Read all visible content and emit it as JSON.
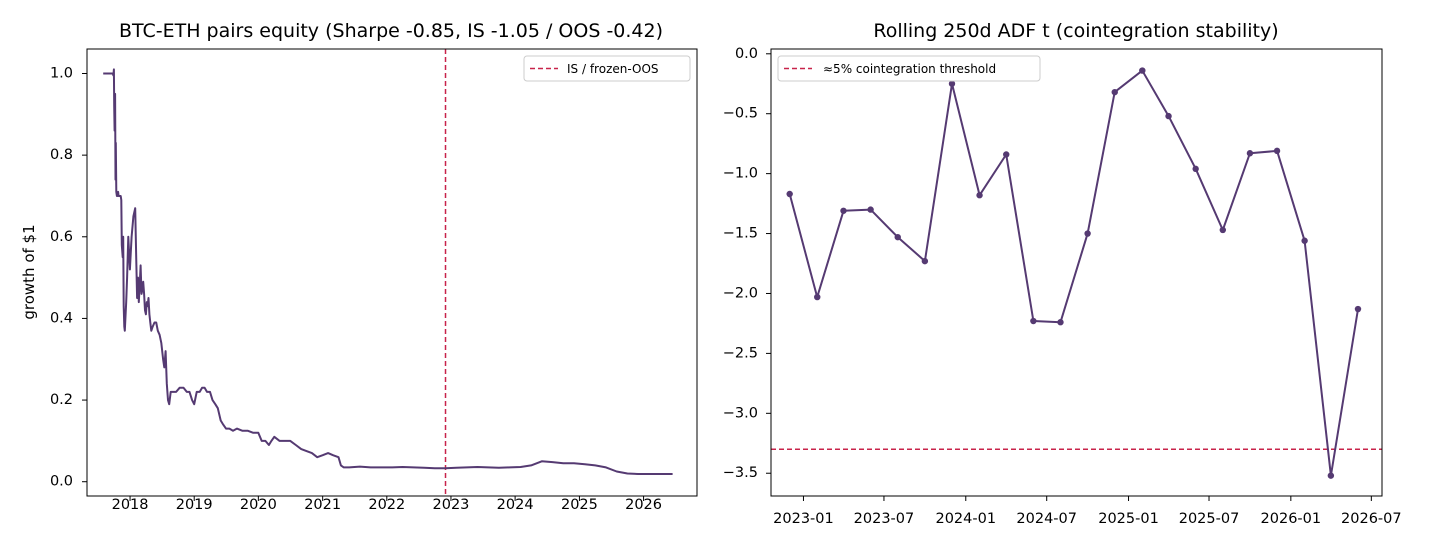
{
  "chart_data": [
    {
      "type": "line",
      "title": "BTC-ETH pairs equity (Sharpe -0.85, IS -1.05 / OOS -0.42)",
      "xlabel": "",
      "ylabel": "growth of $1",
      "xlim": [
        "2017-05-01",
        "2026-11-01"
      ],
      "ylim": [
        -0.035,
        1.06
      ],
      "xticks": [
        "2018",
        "2019",
        "2020",
        "2021",
        "2022",
        "2023",
        "2024",
        "2025",
        "2026"
      ],
      "yticks": [
        "0.0",
        "0.2",
        "0.4",
        "0.6",
        "0.8",
        "1.0"
      ],
      "grid": false,
      "legend": {
        "position": "upper right",
        "entries": [
          "IS / frozen-OOS"
        ]
      },
      "colors": {
        "series": "#553a72",
        "split": "#c8234a"
      },
      "split_date": "2022-12-01",
      "series": [
        {
          "x": [
            "2017-08-01",
            "2017-09-25",
            "2017-09-28",
            "2017-10-01",
            "2017-10-03",
            "2017-10-05",
            "2017-10-08",
            "2017-10-10",
            "2017-10-12",
            "2017-10-15",
            "2017-10-18",
            "2017-10-20",
            "2017-10-25",
            "2017-10-28",
            "2017-10-31",
            "2017-11-03",
            "2017-11-06",
            "2017-11-09",
            "2017-11-12",
            "2017-11-15",
            "2017-11-20",
            "2017-11-23",
            "2017-11-26",
            "2017-11-29",
            "2017-12-02",
            "2017-12-10",
            "2017-12-15",
            "2017-12-22",
            "2017-12-31",
            "2018-01-10",
            "2018-01-20",
            "2018-01-30",
            "2018-02-05",
            "2018-02-10",
            "2018-02-15",
            "2018-02-20",
            "2018-02-25",
            "2018-03-02",
            "2018-03-07",
            "2018-03-12",
            "2018-03-17",
            "2018-03-22",
            "2018-03-27",
            "2018-04-01",
            "2018-04-06",
            "2018-04-11",
            "2018-04-16",
            "2018-04-21",
            "2018-04-26",
            "2018-05-02",
            "2018-05-10",
            "2018-05-20",
            "2018-05-30",
            "2018-06-08",
            "2018-06-18",
            "2018-06-28",
            "2018-07-08",
            "2018-07-15",
            "2018-07-22",
            "2018-07-29",
            "2018-08-05",
            "2018-08-12",
            "2018-08-20",
            "2018-09-01",
            "2018-09-20",
            "2018-10-10",
            "2018-11-01",
            "2018-11-20",
            "2018-12-05",
            "2018-12-20",
            "2019-01-01",
            "2019-01-15",
            "2019-02-01",
            "2019-02-15",
            "2019-03-01",
            "2019-03-15",
            "2019-04-01",
            "2019-04-15",
            "2019-05-01",
            "2019-05-15",
            "2019-06-01",
            "2019-06-15",
            "2019-07-01",
            "2019-07-20",
            "2019-08-10",
            "2019-09-01",
            "2019-10-01",
            "2019-11-01",
            "2019-12-01",
            "2020-01-01",
            "2020-01-20",
            "2020-02-10",
            "2020-03-01",
            "2020-03-15",
            "2020-04-01",
            "2020-05-01",
            "2020-06-01",
            "2020-07-01",
            "2020-08-01",
            "2020-09-01",
            "2020-10-01",
            "2020-11-01",
            "2020-12-01",
            "2021-01-01",
            "2021-02-01",
            "2021-03-01",
            "2021-04-01",
            "2021-04-15",
            "2021-05-01",
            "2021-06-01",
            "2021-08-01",
            "2021-10-01",
            "2021-12-01",
            "2022-02-01",
            "2022-04-01",
            "2022-06-01",
            "2022-08-01",
            "2022-10-01",
            "2022-12-01",
            "2023-02-01",
            "2023-04-01",
            "2023-06-01",
            "2023-08-01",
            "2023-10-01",
            "2023-12-01",
            "2024-02-01",
            "2024-04-01",
            "2024-06-01",
            "2024-08-01",
            "2024-10-01",
            "2024-12-01",
            "2025-02-01",
            "2025-04-01",
            "2025-06-01",
            "2025-08-01",
            "2025-10-01",
            "2025-12-01",
            "2026-02-01",
            "2026-04-01",
            "2026-06-15"
          ],
          "y": [
            1.0,
            1.0,
            0.995,
            1.01,
            0.92,
            0.86,
            0.95,
            0.74,
            0.83,
            0.71,
            0.7,
            0.7,
            0.71,
            0.7,
            0.7,
            0.7,
            0.7,
            0.7,
            0.69,
            0.58,
            0.55,
            0.6,
            0.43,
            0.38,
            0.37,
            0.44,
            0.5,
            0.6,
            0.52,
            0.6,
            0.65,
            0.67,
            0.55,
            0.45,
            0.5,
            0.44,
            0.48,
            0.53,
            0.46,
            0.47,
            0.49,
            0.46,
            0.42,
            0.41,
            0.44,
            0.43,
            0.45,
            0.41,
            0.39,
            0.37,
            0.38,
            0.39,
            0.39,
            0.37,
            0.36,
            0.34,
            0.3,
            0.28,
            0.32,
            0.24,
            0.2,
            0.19,
            0.22,
            0.22,
            0.22,
            0.23,
            0.23,
            0.22,
            0.22,
            0.2,
            0.19,
            0.22,
            0.22,
            0.23,
            0.23,
            0.22,
            0.22,
            0.2,
            0.19,
            0.18,
            0.15,
            0.14,
            0.13,
            0.13,
            0.125,
            0.13,
            0.125,
            0.125,
            0.12,
            0.12,
            0.1,
            0.1,
            0.09,
            0.1,
            0.11,
            0.1,
            0.1,
            0.1,
            0.09,
            0.08,
            0.075,
            0.07,
            0.06,
            0.065,
            0.07,
            0.065,
            0.06,
            0.04,
            0.035,
            0.035,
            0.037,
            0.035,
            0.035,
            0.035,
            0.036,
            0.035,
            0.034,
            0.033,
            0.033,
            0.034,
            0.035,
            0.036,
            0.035,
            0.034,
            0.035,
            0.036,
            0.04,
            0.05,
            0.048,
            0.045,
            0.045,
            0.043,
            0.04,
            0.035,
            0.025,
            0.02,
            0.019,
            0.019,
            0.019,
            0.019
          ]
        }
      ]
    },
    {
      "type": "line",
      "title": "Rolling 250d ADF t (cointegration stability)",
      "xlabel": "",
      "ylabel": "",
      "xlim": [
        "2022-10-20",
        "2026-07-25"
      ],
      "ylim": [
        -3.69,
        0.04
      ],
      "xticks": [
        "2023-01",
        "2023-07",
        "2024-01",
        "2024-07",
        "2025-01",
        "2025-07",
        "2026-01",
        "2026-07"
      ],
      "yticks": [
        "0.0",
        "−0.5",
        "−1.0",
        "−1.5",
        "−2.0",
        "−2.5",
        "−3.0",
        "−3.5"
      ],
      "grid": false,
      "legend": {
        "position": "upper left",
        "entries": [
          "≈5% cointegration threshold"
        ]
      },
      "colors": {
        "series": "#553a72",
        "threshold": "#c8234a"
      },
      "threshold": -3.3,
      "series": [
        {
          "x": [
            "2022-12-01",
            "2023-02-01",
            "2023-04-01",
            "2023-06-01",
            "2023-08-01",
            "2023-10-01",
            "2023-12-01",
            "2024-02-01",
            "2024-04-01",
            "2024-06-01",
            "2024-08-01",
            "2024-10-01",
            "2024-12-01",
            "2025-02-01",
            "2025-04-01",
            "2025-06-01",
            "2025-08-01",
            "2025-10-01",
            "2025-12-01",
            "2026-02-01",
            "2026-04-01",
            "2026-06-01"
          ],
          "y": [
            -1.17,
            -2.03,
            -1.31,
            -1.3,
            -1.53,
            -1.73,
            -0.25,
            -1.18,
            -0.84,
            -2.23,
            -2.24,
            -1.5,
            -0.32,
            -0.14,
            -0.52,
            -0.96,
            -1.47,
            -0.83,
            -0.81,
            -1.56,
            -3.52,
            -2.13
          ]
        }
      ]
    }
  ]
}
